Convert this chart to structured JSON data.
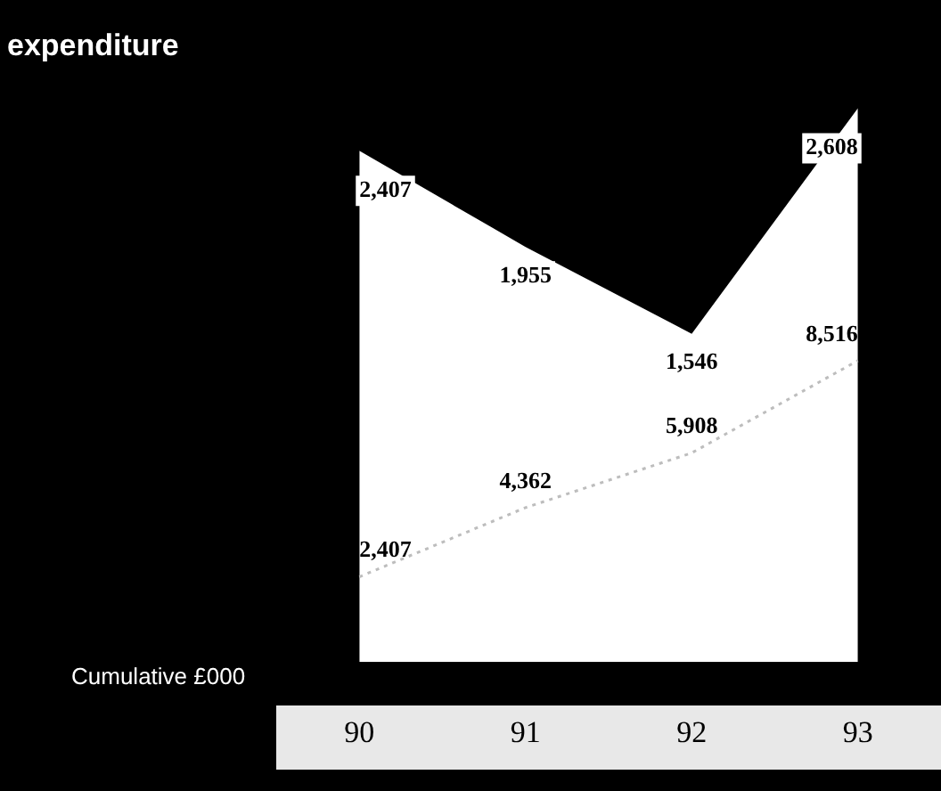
{
  "chart_data": {
    "type": "line",
    "title": "expenditure",
    "ylabel": "Cumulative £000",
    "categories": [
      "90",
      "91",
      "92",
      "93"
    ],
    "series": [
      {
        "type": "area",
        "color": "#ffffff",
        "axis": "y2",
        "values": [
          2407,
          1955,
          1546,
          2608
        ],
        "value_labels": [
          "2,407",
          "1,955",
          "1,546",
          "2,608"
        ]
      },
      {
        "type": "line",
        "color": "#bdbdbd",
        "line_style": "dotted",
        "values": [
          2407,
          4362,
          5908,
          8516
        ],
        "value_labels": [
          "2,407",
          "4,362",
          "5,908",
          "8,516"
        ]
      }
    ],
    "legend": false,
    "tick_labels": "x"
  }
}
